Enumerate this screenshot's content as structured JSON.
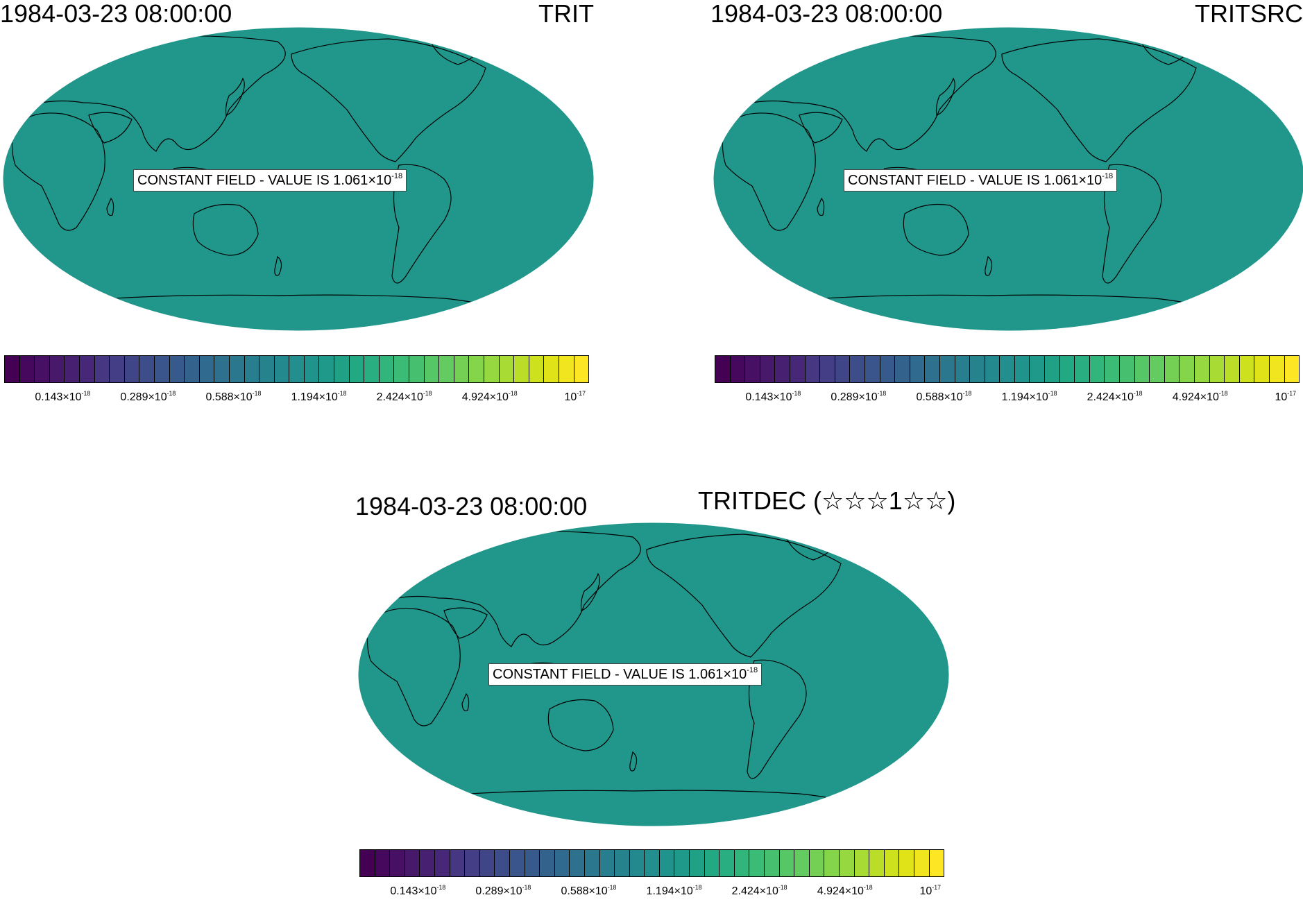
{
  "panels": [
    {
      "date": "1984-03-23 08:00:00",
      "title": "TRIT"
    },
    {
      "date": "1984-03-23 08:00:00",
      "title": "TRITSRC"
    },
    {
      "date": "1984-03-23 08:00:00",
      "title": "TRITDEC (☆☆☆1☆☆)"
    }
  ],
  "constant_label": {
    "text": "CONSTANT FIELD - VALUE IS 1.061×10",
    "exponent": "-18"
  },
  "colors": {
    "field": "#21968b",
    "ocean_outline": "#000000",
    "colormap": [
      "#440154",
      "#46085c",
      "#471064",
      "#48186a",
      "#482071",
      "#472878",
      "#453781",
      "#433e85",
      "#404588",
      "#3d4d8a",
      "#3a548c",
      "#375a8c",
      "#33638d",
      "#306a8e",
      "#2d718e",
      "#2b778e",
      "#287d8e",
      "#26838e",
      "#24898e",
      "#228e8d",
      "#20948c",
      "#1f9a8a",
      "#20a186",
      "#23a884",
      "#28ae80",
      "#31b57b",
      "#3bbb75",
      "#46c06f",
      "#56c667",
      "#63cb5f",
      "#73d055",
      "#85d54a",
      "#95d840",
      "#a8db34",
      "#bade28",
      "#cde11d",
      "#dfe318",
      "#f1e51d",
      "#fde725"
    ]
  },
  "colorbar_ticks": [
    {
      "mantissa": "0.143×10",
      "exp": "-18"
    },
    {
      "mantissa": "0.289×10",
      "exp": "-18"
    },
    {
      "mantissa": "0.588×10",
      "exp": "-18"
    },
    {
      "mantissa": "1.194×10",
      "exp": "-18"
    },
    {
      "mantissa": "2.424×10",
      "exp": "-18"
    },
    {
      "mantissa": "4.924×10",
      "exp": "-18"
    },
    {
      "mantissa": "10",
      "exp": "-17"
    }
  ]
}
